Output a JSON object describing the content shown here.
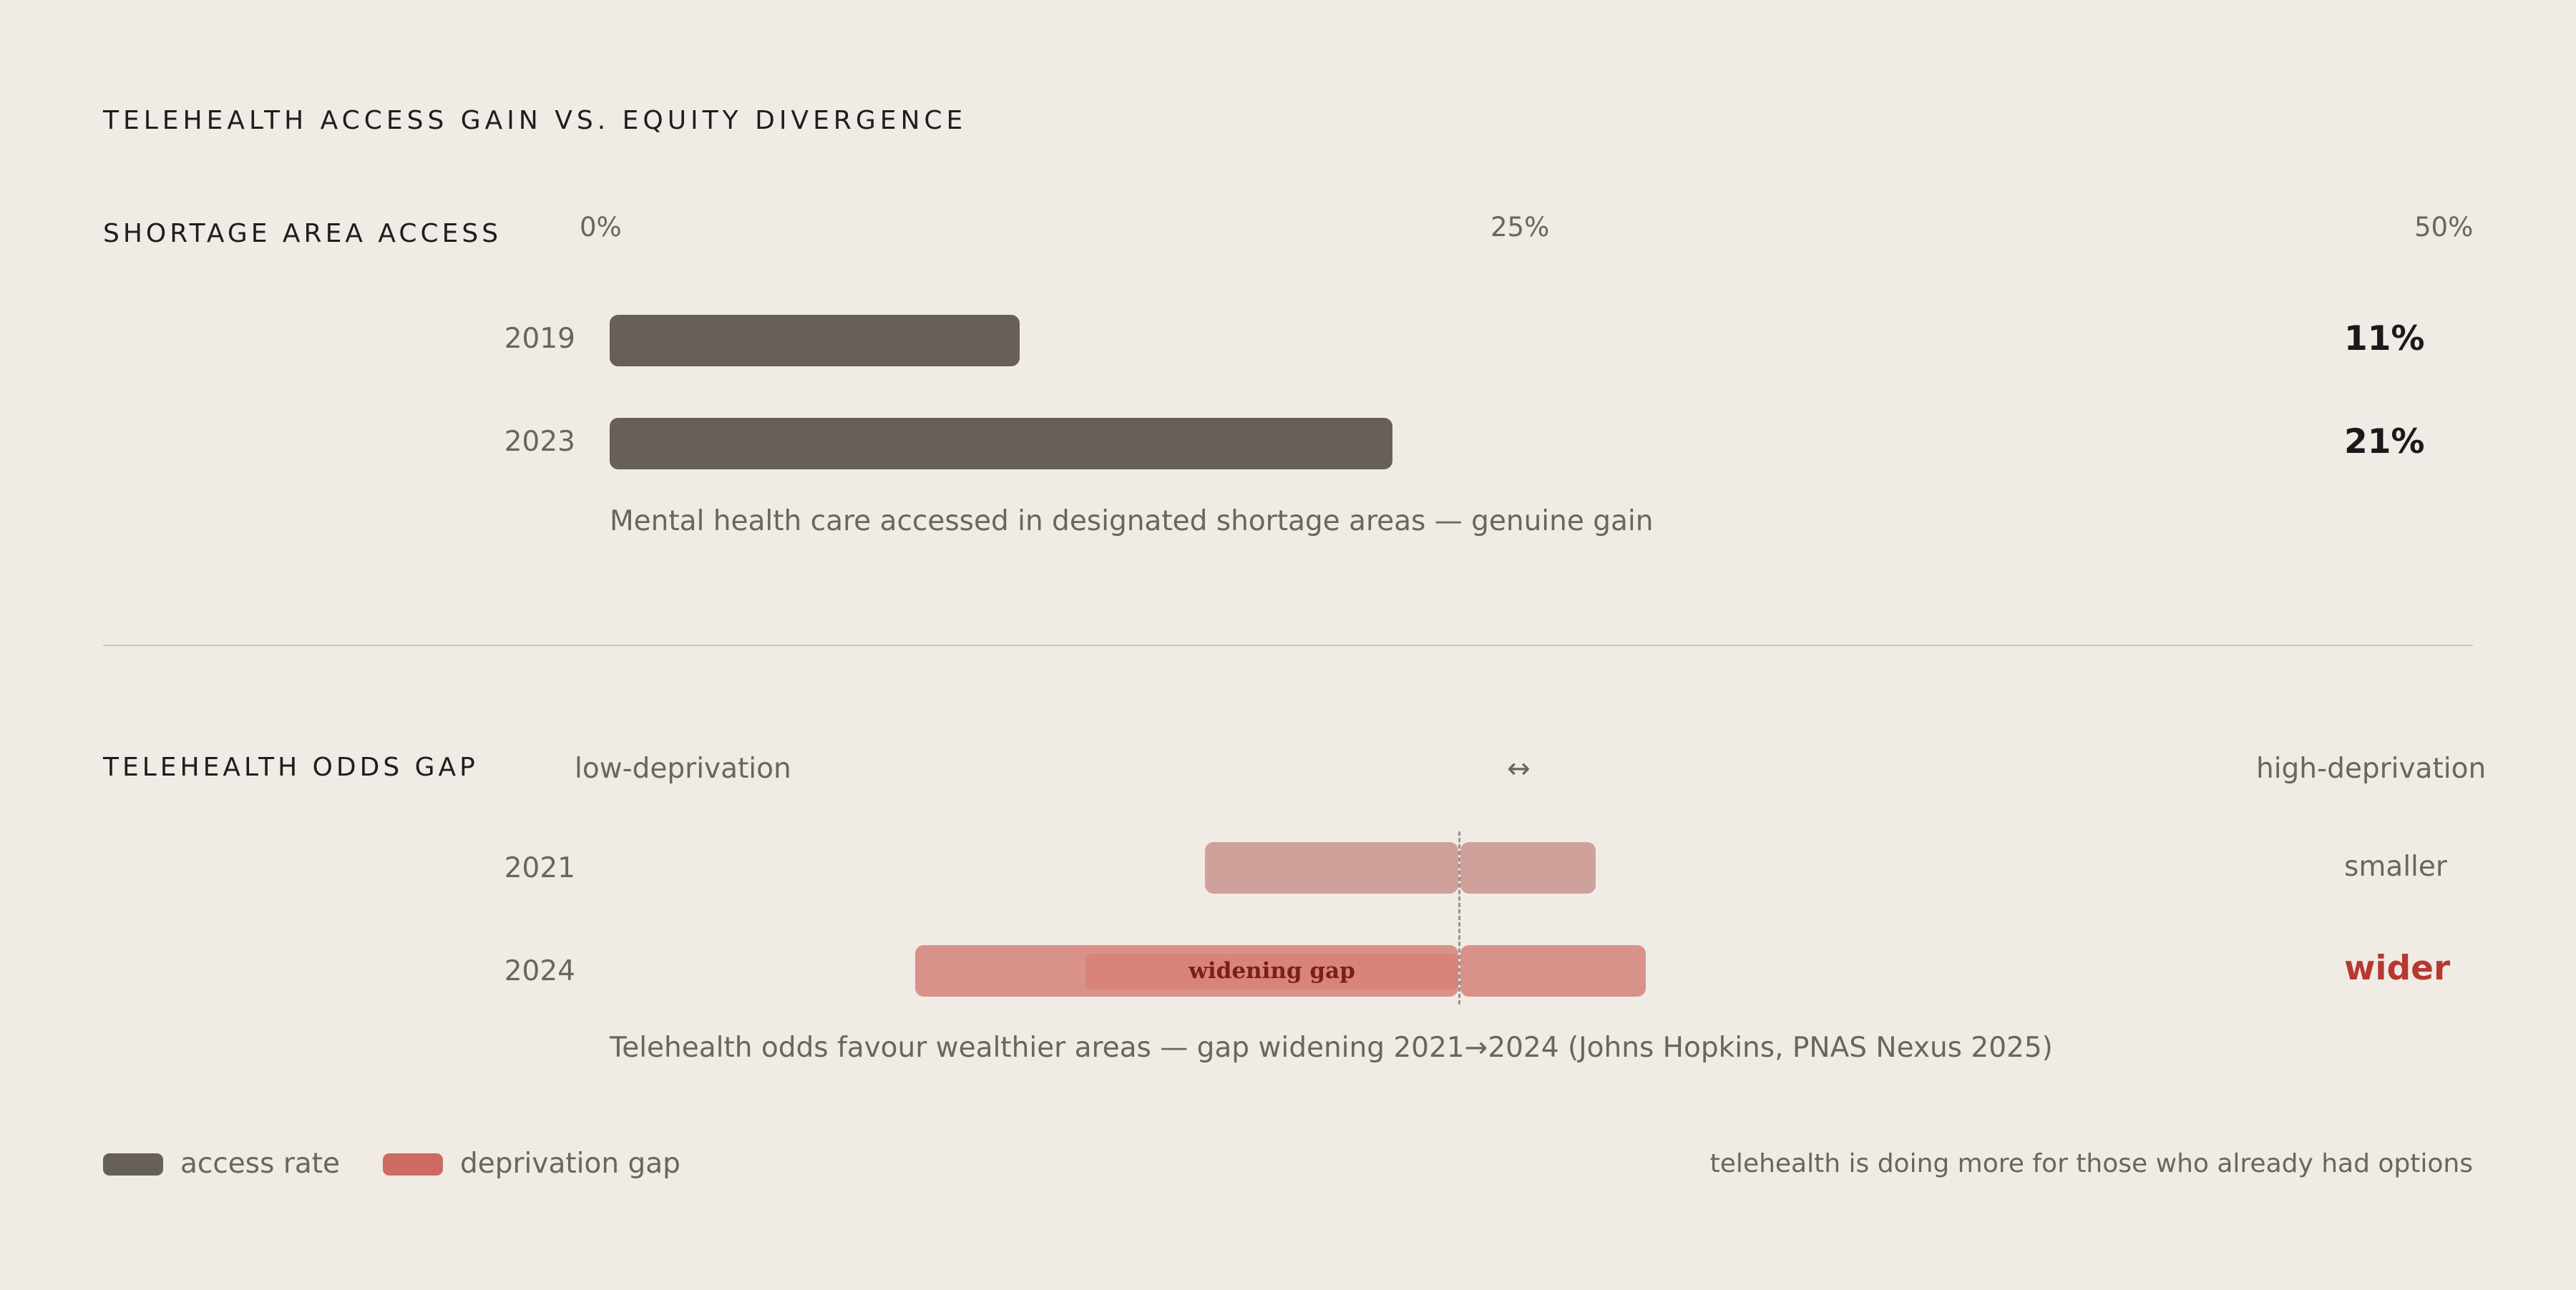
{
  "title": "TELEHEALTH ACCESS GAIN VS. EQUITY DIVERGENCE",
  "chart_data": [
    {
      "type": "bar",
      "section_title": "SHORTAGE AREA ACCESS",
      "axis_ticks": [
        "0%",
        "25%",
        "50%"
      ],
      "xlim": [
        0,
        50
      ],
      "categories": [
        "2019",
        "2023"
      ],
      "values": [
        11,
        21
      ],
      "value_labels": [
        "11%",
        "21%"
      ],
      "caption": "Mental health care accessed in designated shortage areas — genuine gain"
    },
    {
      "type": "bar",
      "section_title": "TELEHEALTH ODDS GAP",
      "axis_left": "low-deprivation",
      "axis_center": "↔",
      "axis_right": "high-deprivation",
      "categories": [
        "2021",
        "2024"
      ],
      "status": [
        "smaller",
        "wider"
      ],
      "annotation": "widening gap",
      "caption": "Telehealth odds favour wealthier areas — gap widening 2021→2024 (Johns Hopkins, PNAS Nexus 2025)"
    }
  ],
  "legend": [
    {
      "label": "access rate",
      "color": "#67605a"
    },
    {
      "label": "deprivation gap",
      "color": "#cd6b60"
    }
  ],
  "note": "telehealth is doing more for those who already had options"
}
